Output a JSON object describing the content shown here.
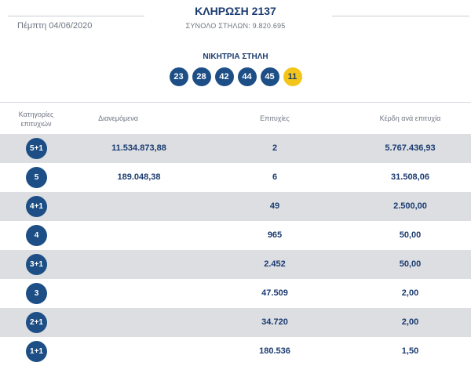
{
  "header": {
    "date": "Πέμπτη 04/06/2020",
    "draw_title": "ΚΛΗΡΩΣΗ 2137",
    "total_columns": "ΣΥΝΟΛΟ ΣΤΗΛΩΝ: 9.820.695"
  },
  "winning": {
    "title": "ΝΙΚΗΤΡΙΑ ΣΤΗΛΗ",
    "numbers": [
      "23",
      "28",
      "42",
      "44",
      "45"
    ],
    "joker": "11"
  },
  "table": {
    "headers": {
      "category": "Κατηγορίες επιτυχιών",
      "distributed": "Διανεμόμενα",
      "winners": "Επιτυχίες",
      "prize": "Κέρδη ανά επιτυχία"
    },
    "rows": [
      {
        "category": "5+1",
        "distributed": "11.534.873,88",
        "winners": "2",
        "prize": "5.767.436,93"
      },
      {
        "category": "5",
        "distributed": "189.048,38",
        "winners": "6",
        "prize": "31.508,06"
      },
      {
        "category": "4+1",
        "distributed": "",
        "winners": "49",
        "prize": "2.500,00"
      },
      {
        "category": "4",
        "distributed": "",
        "winners": "965",
        "prize": "50,00"
      },
      {
        "category": "3+1",
        "distributed": "",
        "winners": "2.452",
        "prize": "50,00"
      },
      {
        "category": "3",
        "distributed": "",
        "winners": "47.509",
        "prize": "2,00"
      },
      {
        "category": "2+1",
        "distributed": "",
        "winners": "34.720",
        "prize": "2,00"
      },
      {
        "category": "1+1",
        "distributed": "",
        "winners": "180.536",
        "prize": "1,50"
      }
    ]
  },
  "colors": {
    "ball_blue": "#1d4f86",
    "joker_yellow": "#f3c51a",
    "row_shade": "#dcdee2",
    "text_navy": "#1b3b70"
  }
}
